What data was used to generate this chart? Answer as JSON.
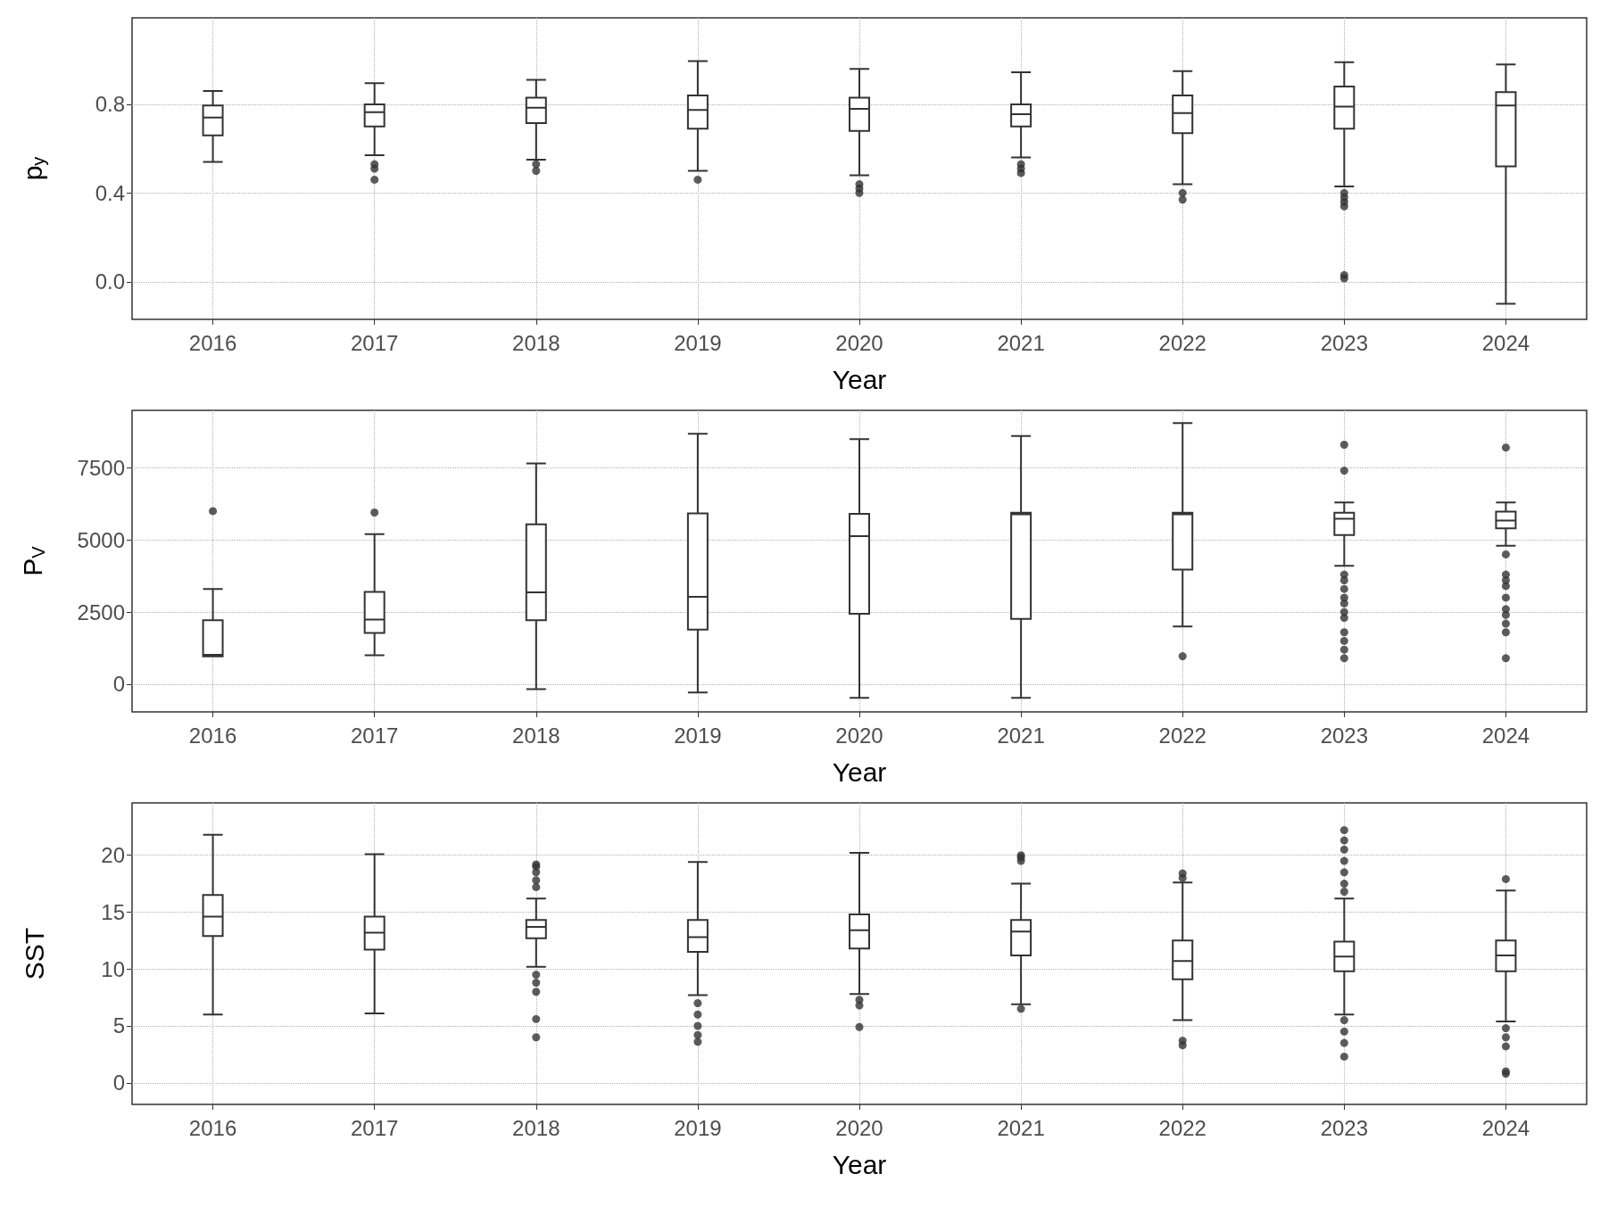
{
  "chart_data": [
    {
      "type": "box",
      "xlabel": "Year",
      "ylabel": "p$_{y}$",
      "grid": true,
      "categories": [
        "2016",
        "2017",
        "2018",
        "2019",
        "2020",
        "2021",
        "2022",
        "2023",
        "2024"
      ],
      "color": "#333333",
      "ylim": [
        -0.17,
        1.19
      ],
      "yticks": [
        {
          "value": 0,
          "label": "0.0"
        },
        {
          "value": 0.4,
          "label": "0.4"
        },
        {
          "value": 0.8,
          "label": "0.8"
        }
      ],
      "boxes": [
        {
          "low": 0.54,
          "q1": 0.66,
          "median": 0.74,
          "q3": 0.795,
          "high": 0.86
        },
        {
          "low": 0.57,
          "q1": 0.7,
          "median": 0.765,
          "q3": 0.8,
          "high": 0.895,
          "outliers": [
            0.53,
            0.51,
            0.46
          ]
        },
        {
          "low": 0.55,
          "q1": 0.715,
          "median": 0.785,
          "q3": 0.83,
          "high": 0.91,
          "outliers": [
            0.53,
            0.5
          ]
        },
        {
          "low": 0.5,
          "q1": 0.69,
          "median": 0.775,
          "q3": 0.84,
          "high": 0.995,
          "outliers": [
            0.46
          ]
        },
        {
          "low": 0.48,
          "q1": 0.68,
          "median": 0.78,
          "q3": 0.83,
          "high": 0.96,
          "outliers": [
            0.44,
            0.42,
            0.4
          ]
        },
        {
          "low": 0.56,
          "q1": 0.7,
          "median": 0.755,
          "q3": 0.8,
          "high": 0.945,
          "outliers": [
            0.53,
            0.51,
            0.49
          ]
        },
        {
          "low": 0.44,
          "q1": 0.67,
          "median": 0.76,
          "q3": 0.84,
          "high": 0.95,
          "outliers": [
            0.4,
            0.37
          ]
        },
        {
          "low": 0.43,
          "q1": 0.69,
          "median": 0.79,
          "q3": 0.88,
          "high": 0.99,
          "outliers": [
            0.4,
            0.38,
            0.36,
            0.34,
            0.03,
            0.015
          ]
        },
        {
          "low": -0.1,
          "q1": 0.52,
          "median": 0.795,
          "q3": 0.855,
          "high": 0.98
        }
      ]
    },
    {
      "type": "box",
      "xlabel": "Year",
      "ylabel": "P$_{V}$",
      "grid": true,
      "categories": [
        "2016",
        "2017",
        "2018",
        "2019",
        "2020",
        "2021",
        "2022",
        "2023",
        "2024"
      ],
      "color": "#333333",
      "ylim": [
        -960,
        9490
      ],
      "yticks": [
        0,
        2500,
        5000,
        7500
      ],
      "boxes": [
        {
          "low": 965,
          "q1": 965,
          "median": 1020,
          "q3": 2220,
          "high": 3300,
          "outliers": [
            6000
          ]
        },
        {
          "low": 1000,
          "q1": 1775,
          "median": 2240,
          "q3": 3200,
          "high": 5200,
          "outliers": [
            5950
          ]
        },
        {
          "low": -170,
          "q1": 2220,
          "median": 3180,
          "q3": 5540,
          "high": 7650
        },
        {
          "low": -290,
          "q1": 1890,
          "median": 3030,
          "q3": 5920,
          "high": 8680
        },
        {
          "low": -470,
          "q1": 2440,
          "median": 5130,
          "q3": 5900,
          "high": 8490
        },
        {
          "low": -470,
          "q1": 2260,
          "median": 5890,
          "q3": 5940,
          "high": 8600
        },
        {
          "low": 2000,
          "q1": 3970,
          "median": 5890,
          "q3": 5940,
          "high": 9050,
          "outliers": [
            970
          ]
        },
        {
          "low": 4100,
          "q1": 5170,
          "median": 5730,
          "q3": 5940,
          "high": 6300,
          "outliers": [
            8300,
            7400,
            3800,
            3600,
            3300,
            3000,
            2800,
            2500,
            2300,
            1800,
            1500,
            1200,
            900
          ]
        },
        {
          "low": 4800,
          "q1": 5400,
          "median": 5670,
          "q3": 5980,
          "high": 6300,
          "outliers": [
            8200,
            4500,
            3800,
            3600,
            3400,
            3000,
            2600,
            2400,
            2100,
            1800,
            900
          ]
        }
      ]
    },
    {
      "type": "box",
      "xlabel": "Year",
      "ylabel": "SST",
      "grid": true,
      "categories": [
        "2016",
        "2017",
        "2018",
        "2019",
        "2020",
        "2021",
        "2022",
        "2023",
        "2024"
      ],
      "color": "#333333",
      "ylim": [
        -1.9,
        24.6
      ],
      "yticks": [
        0,
        5,
        10,
        15,
        20
      ],
      "boxes": [
        {
          "low": 6,
          "q1": 12.9,
          "median": 14.6,
          "q3": 16.5,
          "high": 21.8
        },
        {
          "low": 6.1,
          "q1": 11.7,
          "median": 13.2,
          "q3": 14.6,
          "high": 20.1
        },
        {
          "low": 10.2,
          "q1": 12.7,
          "median": 13.7,
          "q3": 14.3,
          "high": 16.2,
          "outliers": [
            17.2,
            17.8,
            18.5,
            19,
            19.2,
            9.5,
            8.8,
            8,
            5.6,
            4
          ]
        },
        {
          "low": 7.7,
          "q1": 11.5,
          "median": 12.8,
          "q3": 14.3,
          "high": 19.4,
          "outliers": [
            7,
            6,
            5,
            4.2,
            3.6
          ]
        },
        {
          "low": 7.8,
          "q1": 11.8,
          "median": 13.4,
          "q3": 14.8,
          "high": 20.2,
          "outliers": [
            7.3,
            6.8,
            4.9
          ]
        },
        {
          "low": 6.9,
          "q1": 11.2,
          "median": 13.3,
          "q3": 14.3,
          "high": 17.5,
          "outliers": [
            19.5,
            19.8,
            20,
            6.5
          ]
        },
        {
          "low": 5.5,
          "q1": 9.1,
          "median": 10.7,
          "q3": 12.5,
          "high": 17.6,
          "outliers": [
            18,
            18.4,
            3.7,
            3.3
          ]
        },
        {
          "low": 6,
          "q1": 9.8,
          "median": 11.1,
          "q3": 12.4,
          "high": 16.2,
          "outliers": [
            16.8,
            17.5,
            18.5,
            19.5,
            20.5,
            21.3,
            22.2,
            5.5,
            4.5,
            3.5,
            2.3
          ]
        },
        {
          "low": 5.4,
          "q1": 9.8,
          "median": 11.2,
          "q3": 12.5,
          "high": 16.9,
          "outliers": [
            17.9,
            4.8,
            4,
            3.2,
            1,
            0.8
          ]
        }
      ]
    }
  ]
}
